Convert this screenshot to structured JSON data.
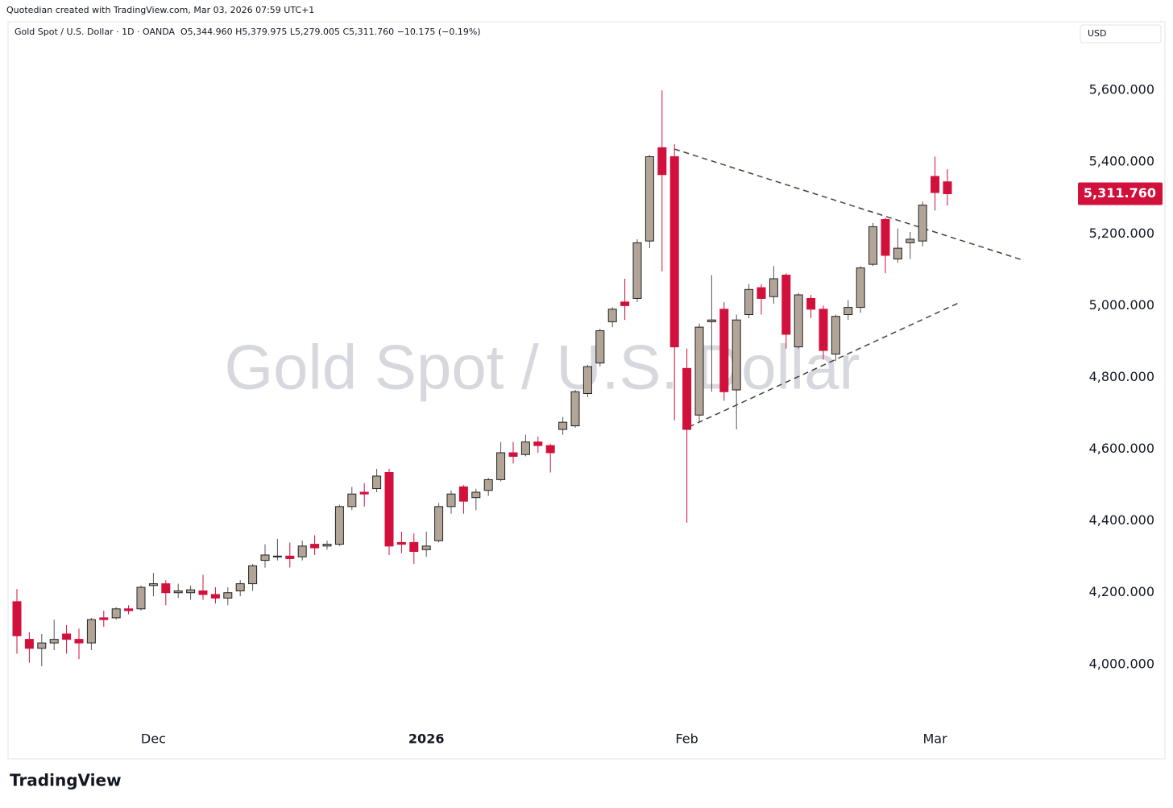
{
  "credit": "Quotedian created with TradingView.com, Mar 03, 2026 07:59 UTC+1",
  "brand": "TradingView",
  "chart_data": {
    "type": "candlestick",
    "title": "Gold Spot / U.S. Dollar · 1D · OANDA",
    "ohlc_readout": "O5,344.960 H5,379.975 L5,279.005 C5,311.760 −10.175 (−0.19%)",
    "watermark": "Gold Spot / U.S. Dollar",
    "currency": "USD",
    "up_color": "#b2a597",
    "down_color": "#d1103c",
    "categories": [
      null,
      null,
      null,
      null,
      null,
      null,
      null,
      null,
      null,
      null,
      null,
      "Dec",
      null,
      null,
      null,
      null,
      null,
      null,
      null,
      null,
      null,
      null,
      null,
      null,
      null,
      null,
      null,
      null,
      null,
      null,
      null,
      null,
      null,
      "2026",
      null,
      null,
      null,
      null,
      null,
      null,
      null,
      null,
      null,
      null,
      null,
      null,
      null,
      null,
      null,
      null,
      null,
      null,
      null,
      null,
      "Feb",
      null,
      null,
      null,
      null,
      null,
      null,
      null,
      null,
      null,
      null,
      null,
      null,
      null,
      null,
      null,
      null,
      null,
      null,
      null,
      "Mar",
      null
    ],
    "open": [
      4175,
      4070,
      4045,
      4060,
      4085,
      4070,
      4060,
      4130,
      4130,
      4155,
      4155,
      4220,
      4225,
      4200,
      4200,
      4205,
      4195,
      4185,
      4205,
      4225,
      4290,
      4300,
      4302,
      4300,
      4335,
      4330,
      4335,
      4440,
      4480,
      4490,
      4535,
      4340,
      4340,
      4320,
      4345,
      4440,
      4495,
      4465,
      4485,
      4515,
      4590,
      4585,
      4620,
      4610,
      4655,
      4665,
      4755,
      4840,
      4955,
      5010,
      5020,
      5180,
      5440,
      5415,
      4825,
      4695,
      4955,
      4990,
      4765,
      4975,
      5050,
      5025,
      5085,
      4885,
      5020,
      4990,
      4865,
      4975,
      4995,
      5115,
      5240,
      5130,
      5175,
      5180,
      5360,
      5344.96
    ],
    "high": [
      4210,
      4090,
      4085,
      4125,
      4110,
      4100,
      4130,
      4150,
      4160,
      4165,
      4220,
      4255,
      4235,
      4225,
      4220,
      4250,
      4215,
      4215,
      4235,
      4280,
      4335,
      4350,
      4340,
      4345,
      4360,
      4345,
      4445,
      4495,
      4505,
      4545,
      4545,
      4370,
      4365,
      4370,
      4450,
      4485,
      4500,
      4490,
      4520,
      4620,
      4620,
      4640,
      4635,
      4615,
      4690,
      4765,
      4835,
      4935,
      4995,
      5075,
      5185,
      5420,
      5600,
      5450,
      4880,
      4950,
      5085,
      5010,
      4975,
      5060,
      5060,
      5110,
      5090,
      5035,
      5030,
      5000,
      4975,
      5015,
      5110,
      5230,
      5245,
      5215,
      5205,
      5290,
      5415,
      5379.975
    ],
    "low": [
      4030,
      4005,
      3995,
      4040,
      4030,
      4015,
      4040,
      4105,
      4125,
      4140,
      4150,
      4190,
      4165,
      4185,
      4180,
      4180,
      4170,
      4165,
      4190,
      4205,
      4270,
      4290,
      4270,
      4290,
      4305,
      4320,
      4330,
      4430,
      4440,
      4480,
      4305,
      4310,
      4280,
      4300,
      4340,
      4420,
      4420,
      4430,
      4470,
      4510,
      4560,
      4580,
      4590,
      4535,
      4640,
      4660,
      4745,
      4830,
      4940,
      4960,
      5010,
      5160,
      5095,
      4680,
      4395,
      4675,
      4760,
      4735,
      4655,
      4965,
      4975,
      5005,
      4880,
      4880,
      4965,
      4850,
      4845,
      4960,
      4980,
      5110,
      5090,
      5120,
      5130,
      5165,
      5265,
      5279.005
    ],
    "close": [
      4080,
      4045,
      4060,
      4070,
      4070,
      4060,
      4125,
      4125,
      4155,
      4150,
      4215,
      4225,
      4200,
      4205,
      4208,
      4195,
      4185,
      4200,
      4225,
      4275,
      4305,
      4302,
      4295,
      4330,
      4325,
      4335,
      4440,
      4475,
      4475,
      4525,
      4330,
      4335,
      4315,
      4330,
      4440,
      4475,
      4455,
      4480,
      4515,
      4590,
      4580,
      4620,
      4610,
      4590,
      4675,
      4760,
      4830,
      4930,
      4990,
      5000,
      5175,
      5415,
      5365,
      4885,
      4655,
      4940,
      4960,
      4760,
      4960,
      5045,
      5020,
      5075,
      4920,
      5030,
      4990,
      4875,
      4970,
      4995,
      5105,
      5220,
      5140,
      5160,
      5185,
      5280,
      5315,
      5311.76
    ],
    "last_price": {
      "value": 5311.76,
      "label": "5,311.760"
    },
    "ylim": [
      3737,
      5791
    ],
    "yticks": [
      {
        "value": 4000,
        "label": "4,000.000"
      },
      {
        "value": 4200,
        "label": "4,200.000"
      },
      {
        "value": 4400,
        "label": "4,400.000"
      },
      {
        "value": 4600,
        "label": "4,600.000"
      },
      {
        "value": 4800,
        "label": "4,800.000"
      },
      {
        "value": 5000,
        "label": "5,000.000"
      },
      {
        "value": 5200,
        "label": "5,200.000"
      },
      {
        "value": 5400,
        "label": "5,400.000"
      },
      {
        "value": 5600,
        "label": "5,600.000"
      }
    ],
    "grid": false
  }
}
